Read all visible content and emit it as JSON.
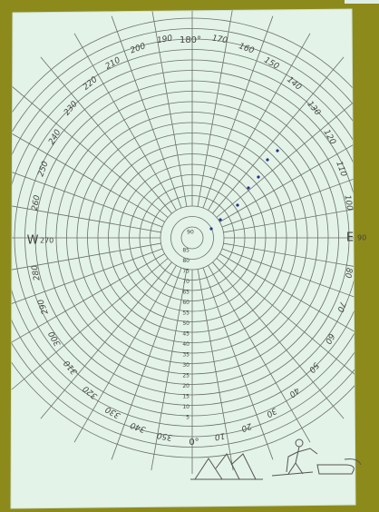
{
  "compass": {
    "north": "180°",
    "south": "0°",
    "west": "W",
    "west_degrees": "270",
    "east": "E",
    "east_degrees": "90"
  },
  "angle_labels": [
    "10",
    "20",
    "30",
    "40",
    "50",
    "60",
    "70",
    "80",
    "100",
    "110",
    "120",
    "130",
    "140",
    "150",
    "160",
    "170",
    "190",
    "200",
    "210",
    "220",
    "230",
    "240",
    "250",
    "260",
    "280",
    "290",
    "300",
    "310",
    "320",
    "330",
    "340",
    "350"
  ],
  "center_label": "90",
  "radial_labels": [
    "85",
    "80",
    "75",
    "70",
    "65",
    "60",
    "55",
    "50",
    "45",
    "40",
    "35",
    "30",
    "25",
    "20",
    "15",
    "10",
    "5"
  ]
}
